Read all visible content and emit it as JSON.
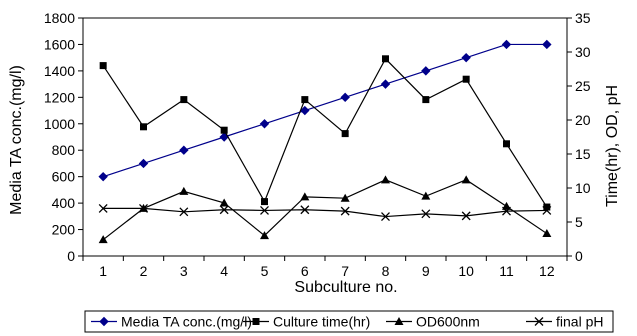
{
  "chart_data": {
    "type": "line",
    "title": "",
    "xlabel": "Subculture no.",
    "ylabel_left": "Media TA conc.(mg/l)",
    "ylabel_right": "Time(hr), OD, pH",
    "categories": [
      "1",
      "2",
      "3",
      "4",
      "5",
      "6",
      "7",
      "8",
      "9",
      "10",
      "11",
      "12"
    ],
    "ylim_left": [
      0,
      1800
    ],
    "yticks_left": [
      "0",
      "200",
      "400",
      "600",
      "800",
      "1000",
      "1200",
      "1400",
      "1600",
      "1800"
    ],
    "ylim_right": [
      0,
      35
    ],
    "yticks_right": [
      "0",
      "5",
      "10",
      "15",
      "20",
      "25",
      "30",
      "35"
    ],
    "grid": false,
    "legend_position": "bottom",
    "series": [
      {
        "name": "Media TA conc.(mg/l)",
        "axis": "left",
        "marker": "diamond",
        "color": "#00008B",
        "values": [
          600,
          700,
          800,
          900,
          1000,
          1100,
          1200,
          1300,
          1400,
          1500,
          1600,
          1600
        ]
      },
      {
        "name": "Culture time(hr)",
        "axis": "right",
        "marker": "square",
        "color": "#000000",
        "values": [
          28,
          19,
          23,
          18.5,
          8,
          23,
          18,
          29,
          23,
          26,
          16.5,
          7.2
        ]
      },
      {
        "name": "OD600nm",
        "axis": "right",
        "marker": "triangle",
        "color": "#000000",
        "values": [
          2.4,
          7.0,
          9.5,
          7.8,
          3.0,
          8.7,
          8.5,
          11.2,
          8.8,
          11.2,
          7.3,
          3.3
        ]
      },
      {
        "name": "final pH",
        "axis": "right",
        "marker": "x",
        "color": "#000000",
        "values": [
          7.0,
          7.0,
          6.5,
          6.8,
          6.7,
          6.8,
          6.6,
          5.8,
          6.2,
          5.9,
          6.6,
          6.7
        ]
      }
    ]
  }
}
